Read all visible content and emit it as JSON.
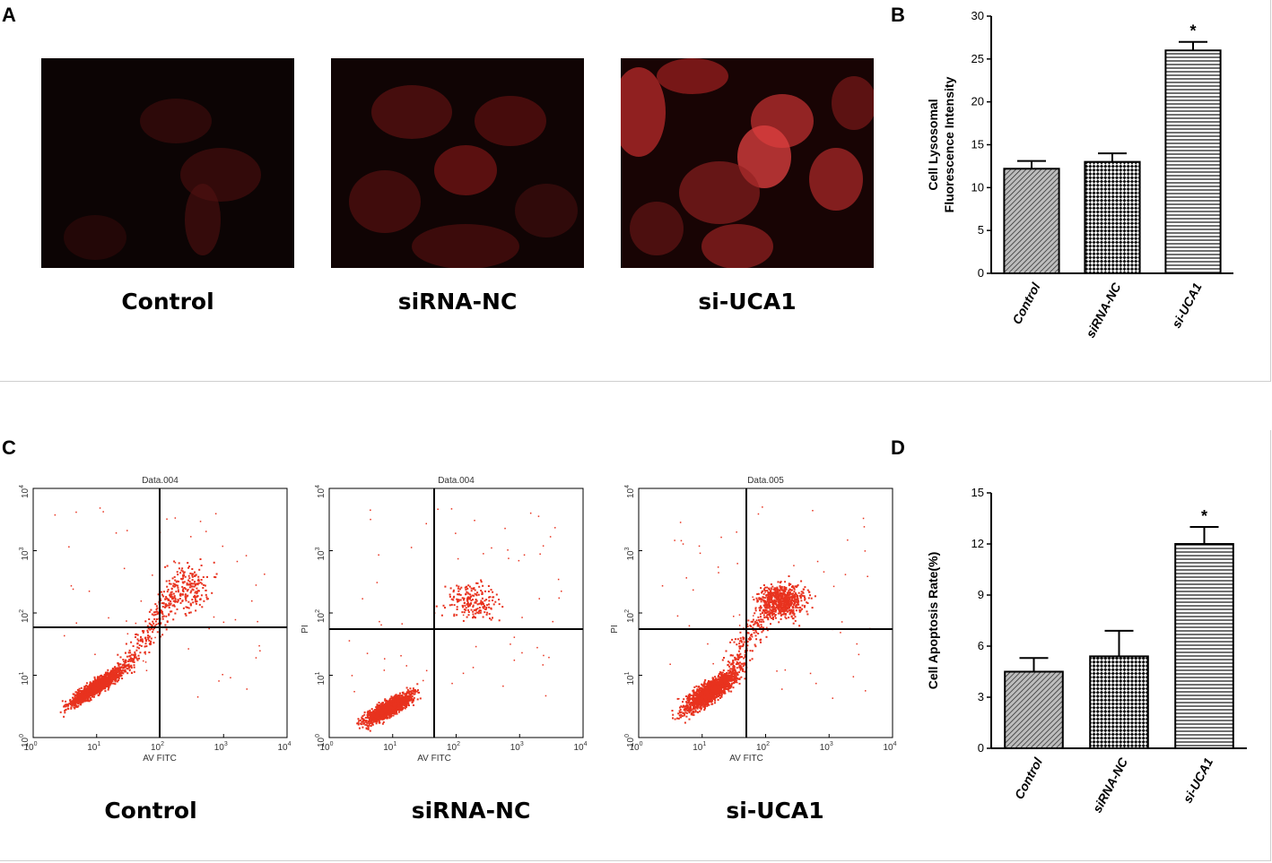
{
  "panels": {
    "a": "A",
    "b": "B",
    "c": "C",
    "d": "D"
  },
  "micrographs": [
    {
      "caption": "Control",
      "intensity": 0.25
    },
    {
      "caption": "siRNA-NC",
      "intensity": 0.45
    },
    {
      "caption": "si-UCA1",
      "intensity": 0.9
    }
  ],
  "flow": {
    "plots": [
      {
        "title": "Data.004",
        "ylabel": "",
        "caption": "Control"
      },
      {
        "title": "Data.004",
        "ylabel": "PI",
        "caption": "siRNA-NC"
      },
      {
        "title": "Data.005",
        "ylabel": "PI",
        "caption": "si-UCA1"
      }
    ],
    "xlabel": "AV FITC",
    "ticks": [
      "10",
      "10",
      "10",
      "10",
      "10"
    ],
    "exponents": [
      "0",
      "1",
      "2",
      "3",
      "4"
    ],
    "dot_color": "#e8321e"
  },
  "chart_data": [
    {
      "type": "bar",
      "panel": "B",
      "categories": [
        "Control",
        "siRNA-NC",
        "si-UCA1"
      ],
      "values": [
        12.2,
        13.0,
        26.0
      ],
      "errors": [
        0.9,
        1.0,
        1.0
      ],
      "significance": [
        "",
        "",
        "*"
      ],
      "ylabel_lines": [
        "Cell Lysosomal",
        "Fluorescence Intensity"
      ],
      "ylim": [
        0,
        30
      ],
      "yticks": [
        0,
        5,
        10,
        15,
        20,
        25,
        30
      ],
      "patterns": [
        "diag-fine",
        "checker",
        "hlines"
      ]
    },
    {
      "type": "bar",
      "panel": "D",
      "categories": [
        "Control",
        "siRNA-NC",
        "si-UCA1"
      ],
      "values": [
        4.5,
        5.4,
        12.0
      ],
      "errors": [
        0.8,
        1.5,
        1.0
      ],
      "significance": [
        "",
        "",
        "*"
      ],
      "ylabel_lines": [
        "Cell Apoptosis Rate(%)"
      ],
      "ylim": [
        0,
        15
      ],
      "yticks": [
        0,
        3,
        6,
        9,
        12,
        15
      ],
      "patterns": [
        "diag-fine",
        "checker",
        "hlines"
      ]
    }
  ]
}
